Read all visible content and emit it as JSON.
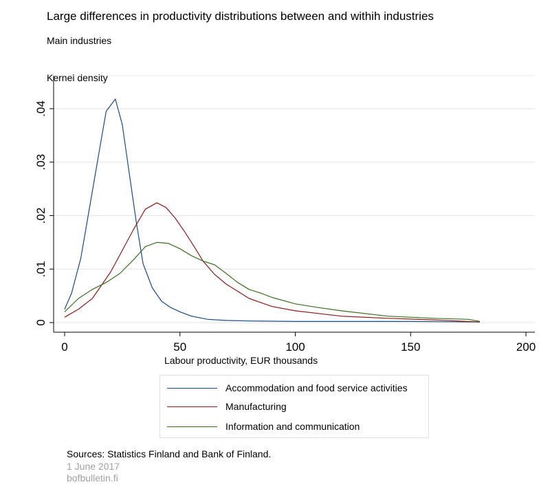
{
  "header": {
    "title": "Large differences in productivity distributions between and withih industries",
    "subtitle": "Main industries",
    "ylabel": "Kernel density"
  },
  "footer": {
    "sources": "Sources: Statistics Finland and Bank of Finland.",
    "date": "1 June 2017",
    "site": "bofbulletin.fi"
  },
  "chart_data": {
    "type": "line",
    "title": "Large differences in productivity distributions between and withih industries",
    "subtitle": "Main industries",
    "xlabel": "Labour productivity, EUR thousands",
    "ylabel": "Kernel density",
    "xlim": [
      0,
      200
    ],
    "ylim": [
      0,
      0.04
    ],
    "xticks": [
      0,
      50,
      100,
      150,
      200
    ],
    "yticks": [
      0,
      0.01,
      0.02,
      0.03,
      0.04
    ],
    "ytick_labels": [
      "0",
      ".01",
      ".02",
      ".03",
      ".04"
    ],
    "grid": "horizontal",
    "legend_position": "bottom",
    "series": [
      {
        "name": "Accommodation and food service activities",
        "color": "#1a4a80",
        "x": [
          0,
          3,
          7,
          11,
          15,
          18,
          22,
          25,
          28,
          31,
          34,
          38,
          42,
          46,
          50,
          55,
          62,
          70,
          80,
          100,
          120,
          150,
          180
        ],
        "y": [
          0.0025,
          0.0055,
          0.012,
          0.022,
          0.032,
          0.0395,
          0.0418,
          0.037,
          0.028,
          0.019,
          0.011,
          0.0065,
          0.004,
          0.0028,
          0.002,
          0.0012,
          0.0006,
          0.0004,
          0.0003,
          0.0002,
          0.0002,
          0.0002,
          0.0001
        ]
      },
      {
        "name": "Manufacturing",
        "color": "#8b1a1a",
        "x": [
          0,
          6,
          12,
          16,
          20,
          25,
          30,
          35,
          40,
          44,
          48,
          52,
          56,
          60,
          65,
          70,
          80,
          90,
          100,
          110,
          120,
          140,
          160,
          180
        ],
        "y": [
          0.001,
          0.0025,
          0.0045,
          0.007,
          0.0095,
          0.0135,
          0.0175,
          0.0212,
          0.0224,
          0.0215,
          0.0195,
          0.017,
          0.0143,
          0.0115,
          0.009,
          0.0072,
          0.0045,
          0.003,
          0.0022,
          0.0017,
          0.0012,
          0.0008,
          0.0005,
          0.0001
        ]
      },
      {
        "name": "Information and communication",
        "color": "#3a6e1f",
        "x": [
          0,
          6,
          12,
          18,
          24,
          30,
          35,
          40,
          45,
          50,
          55,
          60,
          65,
          70,
          75,
          80,
          85,
          90,
          100,
          110,
          120,
          140,
          160,
          175,
          180
        ],
        "y": [
          0.002,
          0.0045,
          0.0062,
          0.0075,
          0.0092,
          0.0118,
          0.0142,
          0.015,
          0.0148,
          0.0138,
          0.0125,
          0.0115,
          0.0108,
          0.0092,
          0.0075,
          0.0062,
          0.0055,
          0.0047,
          0.0035,
          0.0028,
          0.0022,
          0.0012,
          0.0008,
          0.0006,
          0.0002
        ]
      }
    ]
  }
}
